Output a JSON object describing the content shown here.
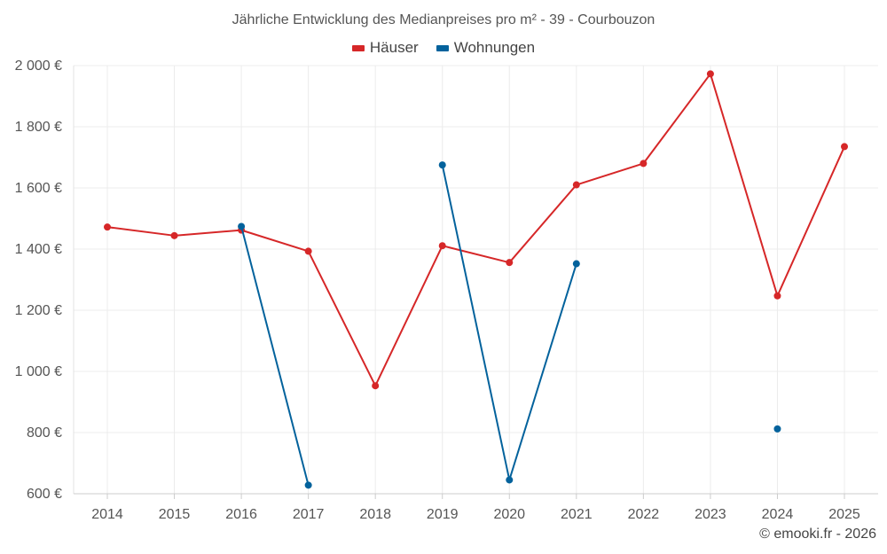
{
  "chart_data": {
    "type": "line",
    "title": "Jährliche Entwicklung des Medianpreises pro m² - 39 - Courbouzon",
    "categories": [
      "2014",
      "2015",
      "2016",
      "2017",
      "2018",
      "2019",
      "2020",
      "2021",
      "2022",
      "2023",
      "2024",
      "2025"
    ],
    "series": [
      {
        "name": "Häuser",
        "color": "#d62728",
        "values": [
          1472,
          1444,
          1462,
          1393,
          953,
          1411,
          1356,
          1610,
          1680,
          1973,
          1247,
          1735
        ]
      },
      {
        "name": "Wohnungen",
        "color": "#03629c",
        "values": [
          null,
          null,
          1474,
          628,
          null,
          1675,
          645,
          1352,
          null,
          null,
          812,
          null
        ]
      }
    ],
    "ylim": [
      600,
      2000
    ],
    "yticks": [
      600,
      800,
      1000,
      1200,
      1400,
      1600,
      1800,
      2000
    ],
    "ytick_labels": [
      "600 €",
      "800 €",
      "1 000 €",
      "1 200 €",
      "1 400 €",
      "1 600 €",
      "1 800 €",
      "2 000 €"
    ],
    "grid": true,
    "legend_position": "top-center",
    "xlabel": "",
    "ylabel": ""
  },
  "credit": "© emooki.fr - 2026"
}
